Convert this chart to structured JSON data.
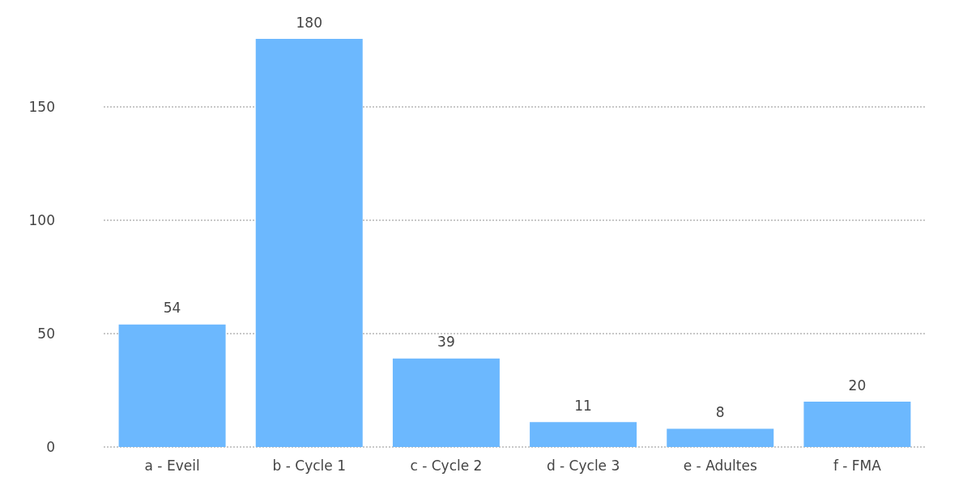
{
  "chart_data": {
    "type": "bar",
    "categories": [
      "a - Eveil",
      "b - Cycle 1",
      "c - Cycle 2",
      "d - Cycle 3",
      "e - Adultes",
      "f - FMA"
    ],
    "values": [
      54,
      180,
      39,
      11,
      8,
      20
    ],
    "color": "#6cb8fe",
    "ylim": [
      0,
      180
    ],
    "yticks": [
      0,
      50,
      100,
      150
    ],
    "grid": "y",
    "line_style": "dotted",
    "data_labels": true
  }
}
